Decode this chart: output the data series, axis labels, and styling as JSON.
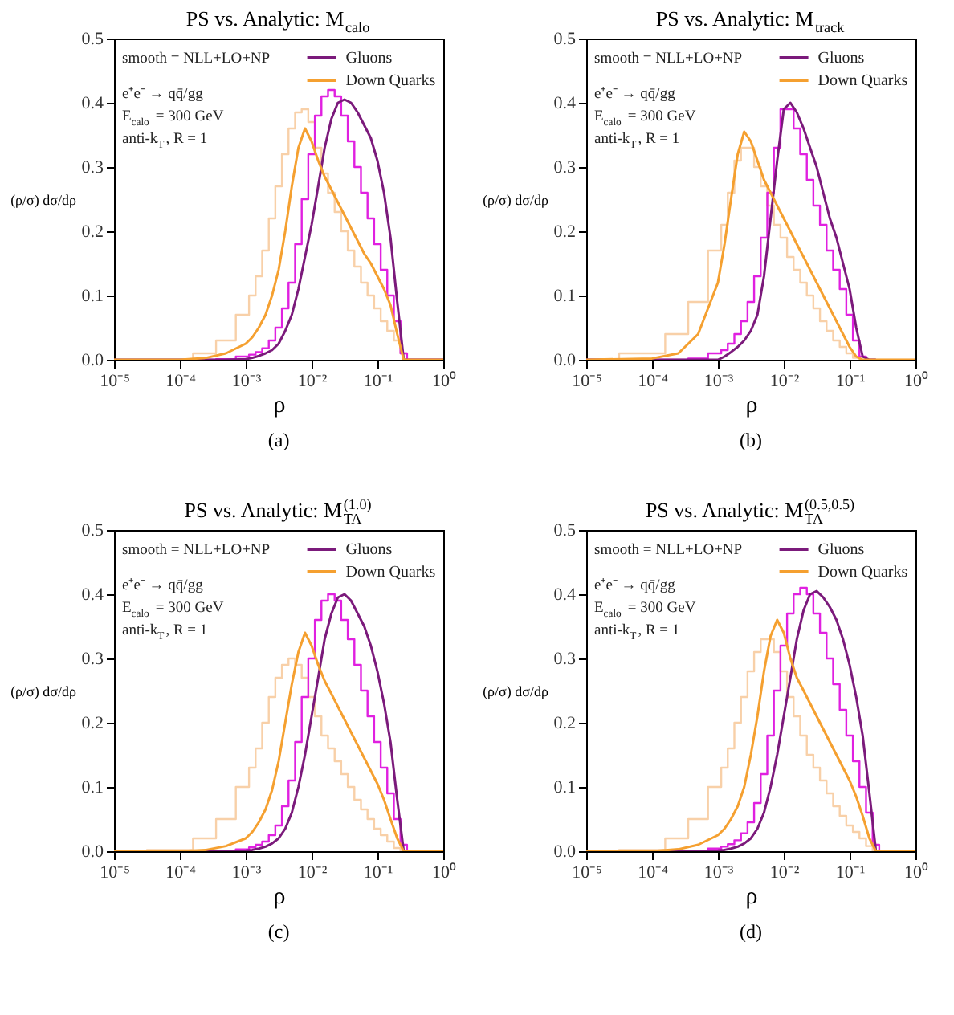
{
  "chart_data": [
    {
      "type": "line",
      "title": "PS vs. Analytic: M$_{calo}$",
      "xlabel": "ρ",
      "ylabel": "(ρ/σ) dσ/dρ",
      "log": "x",
      "legend": "top right",
      "grid": false,
      "annotations": [
        "smooth = NLL+LO+NP",
        "e⁺e⁻ → qq̄/gg",
        "E$_{calo}$ = 300 GeV",
        "anti-k$_{T}$, R = 1",
        "(a)"
      ],
      "xlim": [
        1e-05,
        1
      ],
      "ylim": [
        0,
        0.5
      ],
      "xticks": [
        {
          "value": 1e-05,
          "label": "10⁻⁵"
        },
        {
          "value": 0.0001,
          "label": "10⁻⁴"
        },
        {
          "value": 0.001,
          "label": "10⁻³"
        },
        {
          "value": 0.01,
          "label": "10⁻²"
        },
        {
          "value": 0.1,
          "label": "10⁻¹"
        },
        {
          "value": 1,
          "label": "10⁰"
        }
      ],
      "yticks": [
        {
          "value": 0,
          "label": "0.0"
        },
        {
          "value": 0.1,
          "label": "0.1"
        },
        {
          "value": 0.2,
          "label": "0.2"
        },
        {
          "value": 0.3,
          "label": "0.3"
        },
        {
          "value": 0.4,
          "label": "0.4"
        },
        {
          "value": 0.5,
          "label": "0.5"
        }
      ],
      "x": [
        1e-05,
        0.0001,
        0.000251,
        0.000501,
        0.001,
        0.00126,
        0.00158,
        0.002,
        0.00251,
        0.00316,
        0.00398,
        0.00501,
        0.00631,
        0.00794,
        0.01,
        0.0126,
        0.0158,
        0.02,
        0.0251,
        0.0316,
        0.0398,
        0.0501,
        0.0631,
        0.0794,
        0.1,
        0.126,
        0.158,
        0.2,
        0.251,
        0.316,
        1
      ],
      "series": [
        {
          "type": "step",
          "color": "#f8d0a8",
          "values": [
            0,
            0,
            0.01,
            0.03,
            0.07,
            0.1,
            0.13,
            0.17,
            0.22,
            0.27,
            0.32,
            0.36,
            0.385,
            0.39,
            0.37,
            0.33,
            0.29,
            0.26,
            0.23,
            0.2,
            0.17,
            0.145,
            0.12,
            0.1,
            0.08,
            0.06,
            0.045,
            0.03,
            0.01,
            0,
            0
          ]
        },
        {
          "type": "step",
          "color": "#e020e0",
          "values": [
            null,
            null,
            0,
            0.001,
            0.005,
            0.008,
            0.012,
            0.018,
            0.03,
            0.05,
            0.08,
            0.12,
            0.18,
            0.25,
            0.32,
            0.38,
            0.41,
            0.42,
            0.41,
            0.38,
            0.34,
            0.3,
            0.26,
            0.22,
            0.18,
            0.14,
            0.1,
            0.06,
            0.01,
            0,
            0
          ]
        },
        {
          "type": "line",
          "name": "Gluons",
          "color": "#7b1a7b",
          "values": [
            0,
            0,
            0,
            0,
            0.001,
            0.003,
            0.006,
            0.01,
            0.015,
            0.025,
            0.045,
            0.07,
            0.11,
            0.16,
            0.21,
            0.27,
            0.33,
            0.375,
            0.4,
            0.405,
            0.4,
            0.385,
            0.365,
            0.345,
            0.31,
            0.26,
            0.19,
            0.09,
            0,
            0,
            0
          ]
        },
        {
          "type": "line",
          "name": "Down Quarks",
          "color": "#f5a030",
          "values": [
            0,
            0,
            0.003,
            0.01,
            0.025,
            0.035,
            0.05,
            0.07,
            0.1,
            0.14,
            0.2,
            0.27,
            0.33,
            0.36,
            0.34,
            0.31,
            0.285,
            0.265,
            0.245,
            0.225,
            0.205,
            0.185,
            0.165,
            0.15,
            0.13,
            0.11,
            0.085,
            0.04,
            0,
            0,
            0
          ]
        }
      ]
    },
    {
      "type": "line",
      "title": "PS vs. Analytic: M$_{track}$",
      "xlabel": "ρ",
      "ylabel": "(ρ/σ) dσ/dρ",
      "log": "x",
      "legend": "top right",
      "grid": false,
      "annotations": [
        "smooth = NLL+LO+NP",
        "e⁺e⁻ → qq̄/gg",
        "E$_{calo}$ = 300 GeV",
        "anti-k$_{T}$, R = 1",
        "(b)"
      ],
      "xlim": [
        1e-05,
        1
      ],
      "ylim": [
        0,
        0.5
      ],
      "xticks": [
        {
          "value": 1e-05,
          "label": "10⁻⁵"
        },
        {
          "value": 0.0001,
          "label": "10⁻⁴"
        },
        {
          "value": 0.001,
          "label": "10⁻³"
        },
        {
          "value": 0.01,
          "label": "10⁻²"
        },
        {
          "value": 0.1,
          "label": "10⁻¹"
        },
        {
          "value": 1,
          "label": "10⁰"
        }
      ],
      "yticks": [
        {
          "value": 0,
          "label": "0.0"
        },
        {
          "value": 0.1,
          "label": "0.1"
        },
        {
          "value": 0.2,
          "label": "0.2"
        },
        {
          "value": 0.3,
          "label": "0.3"
        },
        {
          "value": 0.4,
          "label": "0.4"
        },
        {
          "value": 0.5,
          "label": "0.5"
        }
      ],
      "x": [
        1e-05,
        0.0001,
        0.000251,
        0.000501,
        0.001,
        0.00126,
        0.00158,
        0.002,
        0.00251,
        0.00316,
        0.00398,
        0.00501,
        0.00631,
        0.00794,
        0.01,
        0.0126,
        0.0158,
        0.02,
        0.0251,
        0.0316,
        0.0398,
        0.0501,
        0.0631,
        0.0794,
        0.1,
        0.126,
        0.158,
        0.2,
        0.251,
        0.316,
        1
      ],
      "series": [
        {
          "type": "step",
          "color": "#f8d0a8",
          "values": [
            0,
            0.01,
            0.04,
            0.09,
            0.17,
            0.21,
            0.26,
            0.31,
            0.33,
            0.33,
            0.3,
            0.27,
            0.24,
            0.21,
            0.19,
            0.16,
            0.14,
            0.12,
            0.1,
            0.08,
            0.06,
            0.045,
            0.03,
            0.02,
            0.01,
            0.003,
            0,
            0,
            0,
            0,
            0
          ]
        },
        {
          "type": "step",
          "color": "#e020e0",
          "values": [
            0,
            0,
            0,
            0.002,
            0.01,
            0.015,
            0.025,
            0.04,
            0.06,
            0.09,
            0.13,
            0.19,
            0.26,
            0.33,
            0.39,
            0.39,
            0.36,
            0.32,
            0.28,
            0.24,
            0.21,
            0.17,
            0.14,
            0.11,
            0.07,
            0.03,
            0.005,
            0,
            0,
            null,
            null
          ]
        },
        {
          "name": "Gluons",
          "color": "#7b1a7b",
          "values": [
            0,
            0,
            0,
            0,
            0,
            0.005,
            0.012,
            0.02,
            0.03,
            0.045,
            0.07,
            0.13,
            0.22,
            0.31,
            0.39,
            0.4,
            0.385,
            0.36,
            0.33,
            0.3,
            0.26,
            0.22,
            0.19,
            0.15,
            0.11,
            0.05,
            0.005,
            0,
            0,
            null,
            null
          ]
        },
        {
          "type": "line",
          "name": "Down Quarks",
          "color": "#f5a030",
          "values": [
            0,
            0.002,
            0.01,
            0.04,
            0.12,
            0.18,
            0.25,
            0.32,
            0.355,
            0.34,
            0.31,
            0.28,
            0.26,
            0.24,
            0.22,
            0.2,
            0.18,
            0.16,
            0.14,
            0.12,
            0.1,
            0.08,
            0.06,
            0.04,
            0.02,
            0.005,
            0,
            0,
            0,
            0,
            0
          ]
        }
      ]
    },
    {
      "type": "line",
      "title": "PS vs. Analytic: M$_{TA}$$^{(1.0)}$",
      "xlabel": "ρ",
      "ylabel": "(ρ/σ) dσ/dρ",
      "log": "x",
      "legend": "top right",
      "grid": false,
      "annotations": [
        "smooth = NLL+LO+NP",
        "e⁺e⁻ → qq̄/gg",
        "E$_{calo}$ = 300 GeV",
        "anti-k$_{T}$, R = 1",
        "(c)"
      ],
      "xlim": [
        1e-05,
        1
      ],
      "ylim": [
        0,
        0.5
      ],
      "xticks": [
        {
          "value": 1e-05,
          "label": "10⁻⁵"
        },
        {
          "value": 0.0001,
          "label": "10⁻⁴"
        },
        {
          "value": 0.001,
          "label": "10⁻³"
        },
        {
          "value": 0.01,
          "label": "10⁻²"
        },
        {
          "value": 0.1,
          "label": "10⁻¹"
        },
        {
          "value": 1,
          "label": "10⁰"
        }
      ],
      "yticks": [
        {
          "value": 0,
          "label": "0.0"
        },
        {
          "value": 0.1,
          "label": "0.1"
        },
        {
          "value": 0.2,
          "label": "0.2"
        },
        {
          "value": 0.3,
          "label": "0.3"
        },
        {
          "value": 0.4,
          "label": "0.4"
        },
        {
          "value": 0.5,
          "label": "0.5"
        }
      ],
      "x": [
        1e-05,
        0.0001,
        0.000251,
        0.000501,
        0.001,
        0.00126,
        0.00158,
        0.002,
        0.00251,
        0.00316,
        0.00398,
        0.00501,
        0.00631,
        0.00794,
        0.01,
        0.0126,
        0.0158,
        0.02,
        0.0251,
        0.0316,
        0.0398,
        0.0501,
        0.0631,
        0.0794,
        0.1,
        0.126,
        0.158,
        0.2,
        0.251,
        0.316,
        1
      ],
      "series": [
        {
          "type": "step",
          "color": "#f8d0a8",
          "values": [
            0,
            0.002,
            0.02,
            0.05,
            0.1,
            0.13,
            0.16,
            0.2,
            0.24,
            0.27,
            0.29,
            0.3,
            0.29,
            0.27,
            0.24,
            0.21,
            0.18,
            0.16,
            0.14,
            0.12,
            0.1,
            0.08,
            0.065,
            0.05,
            0.035,
            0.025,
            0.015,
            0.005,
            0,
            0,
            0
          ]
        },
        {
          "type": "step",
          "color": "#e020e0",
          "values": [
            null,
            null,
            0,
            0.001,
            0.003,
            0.006,
            0.01,
            0.015,
            0.025,
            0.04,
            0.07,
            0.11,
            0.17,
            0.24,
            0.3,
            0.36,
            0.39,
            0.4,
            0.39,
            0.36,
            0.33,
            0.29,
            0.25,
            0.21,
            0.17,
            0.13,
            0.09,
            0.05,
            0.01,
            0,
            0
          ]
        },
        {
          "type": "line",
          "name": "Gluons",
          "color": "#7b1a7b",
          "values": [
            0,
            0,
            0,
            0,
            0.001,
            0.002,
            0.004,
            0.007,
            0.012,
            0.02,
            0.035,
            0.06,
            0.1,
            0.15,
            0.21,
            0.27,
            0.33,
            0.37,
            0.395,
            0.4,
            0.39,
            0.37,
            0.35,
            0.32,
            0.28,
            0.23,
            0.17,
            0.08,
            0,
            0,
            0
          ]
        },
        {
          "type": "line",
          "name": "Down Quarks",
          "color": "#f5a030",
          "values": [
            0,
            0,
            0.002,
            0.008,
            0.02,
            0.03,
            0.045,
            0.065,
            0.095,
            0.14,
            0.2,
            0.26,
            0.31,
            0.34,
            0.32,
            0.29,
            0.265,
            0.245,
            0.225,
            0.205,
            0.185,
            0.165,
            0.145,
            0.125,
            0.105,
            0.08,
            0.05,
            0.02,
            0,
            0,
            0
          ]
        }
      ]
    },
    {
      "type": "line",
      "title": "PS vs. Analytic: M$_{TA}$$^{(0.5,0.5)}$",
      "xlabel": "ρ",
      "ylabel": "(ρ/σ) dσ/dρ",
      "log": "x",
      "legend": "top right",
      "grid": false,
      "annotations": [
        "smooth = NLL+LO+NP",
        "e⁺e⁻ → qq̄/gg",
        "E$_{calo}$ = 300 GeV",
        "anti-k$_{T}$, R = 1",
        "(d)"
      ],
      "xlim": [
        1e-05,
        1
      ],
      "ylim": [
        0,
        0.5
      ],
      "xticks": [
        {
          "value": 1e-05,
          "label": "10⁻⁵"
        },
        {
          "value": 0.0001,
          "label": "10⁻⁴"
        },
        {
          "value": 0.001,
          "label": "10⁻³"
        },
        {
          "value": 0.01,
          "label": "10⁻²"
        },
        {
          "value": 0.1,
          "label": "10⁻¹"
        },
        {
          "value": 1,
          "label": "10⁰"
        }
      ],
      "yticks": [
        {
          "value": 0,
          "label": "0.0"
        },
        {
          "value": 0.1,
          "label": "0.1"
        },
        {
          "value": 0.2,
          "label": "0.2"
        },
        {
          "value": 0.3,
          "label": "0.3"
        },
        {
          "value": 0.4,
          "label": "0.4"
        },
        {
          "value": 0.5,
          "label": "0.5"
        }
      ],
      "x": [
        1e-05,
        0.0001,
        0.000251,
        0.000501,
        0.001,
        0.00126,
        0.00158,
        0.002,
        0.00251,
        0.00316,
        0.00398,
        0.00501,
        0.00631,
        0.00794,
        0.01,
        0.0126,
        0.0158,
        0.02,
        0.0251,
        0.0316,
        0.0398,
        0.0501,
        0.0631,
        0.0794,
        0.1,
        0.126,
        0.158,
        0.2,
        0.251,
        0.316,
        1
      ],
      "series": [
        {
          "type": "step",
          "color": "#f8d0a8",
          "values": [
            0,
            0.002,
            0.02,
            0.05,
            0.1,
            0.13,
            0.16,
            0.2,
            0.24,
            0.28,
            0.31,
            0.33,
            0.33,
            0.31,
            0.28,
            0.24,
            0.21,
            0.18,
            0.15,
            0.13,
            0.11,
            0.09,
            0.07,
            0.055,
            0.04,
            0.03,
            0.02,
            0.008,
            0,
            0,
            0
          ]
        },
        {
          "type": "step",
          "color": "#e020e0",
          "values": [
            null,
            null,
            0,
            0.001,
            0.004,
            0.007,
            0.011,
            0.017,
            0.028,
            0.045,
            0.075,
            0.12,
            0.18,
            0.25,
            0.32,
            0.37,
            0.4,
            0.41,
            0.4,
            0.37,
            0.34,
            0.3,
            0.26,
            0.22,
            0.18,
            0.14,
            0.1,
            0.06,
            0.01,
            0,
            0
          ]
        },
        {
          "type": "line",
          "name": "Gluons",
          "color": "#7b1a7b",
          "values": [
            0,
            0,
            0,
            0,
            0.001,
            0.002,
            0.004,
            0.007,
            0.012,
            0.02,
            0.035,
            0.06,
            0.1,
            0.15,
            0.21,
            0.27,
            0.33,
            0.375,
            0.4,
            0.405,
            0.395,
            0.38,
            0.36,
            0.33,
            0.29,
            0.24,
            0.18,
            0.09,
            0,
            0,
            0
          ]
        },
        {
          "type": "line",
          "name": "Down Quarks",
          "color": "#f5a030",
          "values": [
            0,
            0,
            0.003,
            0.01,
            0.025,
            0.035,
            0.05,
            0.07,
            0.1,
            0.15,
            0.21,
            0.28,
            0.335,
            0.36,
            0.34,
            0.3,
            0.27,
            0.25,
            0.23,
            0.21,
            0.19,
            0.17,
            0.15,
            0.13,
            0.11,
            0.085,
            0.055,
            0.02,
            0,
            0,
            0
          ]
        }
      ]
    }
  ]
}
